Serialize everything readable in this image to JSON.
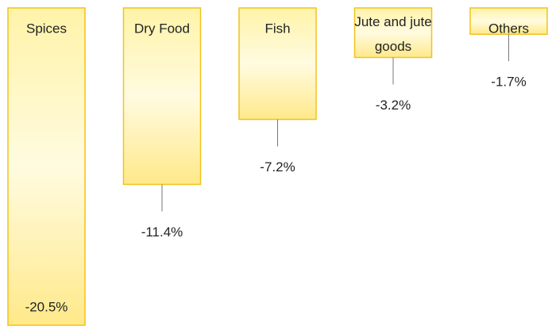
{
  "chart_data": {
    "type": "bar",
    "categories": [
      "Spices",
      "Dry Food",
      "Fish",
      "Jute and jute goods",
      "Others"
    ],
    "values": [
      -20.5,
      -11.4,
      -7.2,
      -3.2,
      -1.7
    ],
    "value_labels": [
      "-20.5%",
      "-11.4%",
      "-7.2%",
      "-3.2%",
      "-1.7%"
    ],
    "color": "#ffe98a",
    "ylim": [
      -20.5,
      0
    ]
  }
}
